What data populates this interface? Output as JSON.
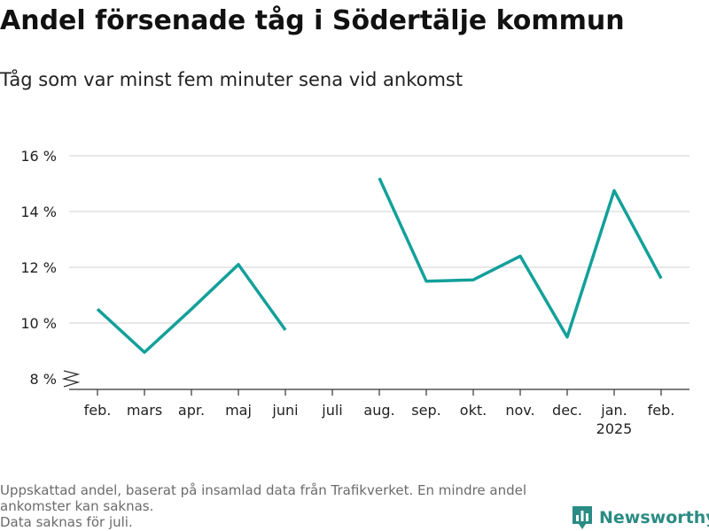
{
  "header": {
    "title": "Andel försenade tåg i Södertälje kommun",
    "subtitle": "Tåg som var minst fem minuter sena vid ankomst"
  },
  "chart_data": {
    "type": "line",
    "title": "Andel försenade tåg i Södertälje kommun",
    "subtitle": "Tåg som var minst fem minuter sena vid ankomst",
    "xlabel": "",
    "ylabel": "",
    "categories": [
      "feb.",
      "mars",
      "apr.",
      "maj",
      "juni",
      "juli",
      "aug.",
      "sep.",
      "okt.",
      "nov.",
      "dec.",
      "jan.",
      "feb."
    ],
    "year_labels": [
      {
        "category_index": 11,
        "label": "2025"
      }
    ],
    "series": [
      {
        "name": "",
        "color": "#13a09a",
        "values": [
          10.5,
          8.95,
          10.5,
          12.1,
          9.75,
          null,
          15.2,
          11.5,
          11.55,
          12.4,
          9.5,
          14.75,
          11.6
        ]
      }
    ],
    "yticks": [
      8,
      10,
      12,
      14,
      16
    ],
    "ytick_labels": [
      "8 %",
      "10 %",
      "12 %",
      "14 %",
      "16 %"
    ],
    "ylim": [
      8,
      16
    ],
    "y_axis_break": true,
    "grid": true,
    "legend": "none"
  },
  "footer": {
    "note_line1": "Uppskattad andel, baserat på insamlad data från Trafikverket. En mindre andel ankomster kan saknas.",
    "note_line2": "Data saknas för juli.",
    "brand": "Newsworthy",
    "brand_color": "#2a8c84",
    "brand_icon": "bar-chart-logo-icon"
  }
}
